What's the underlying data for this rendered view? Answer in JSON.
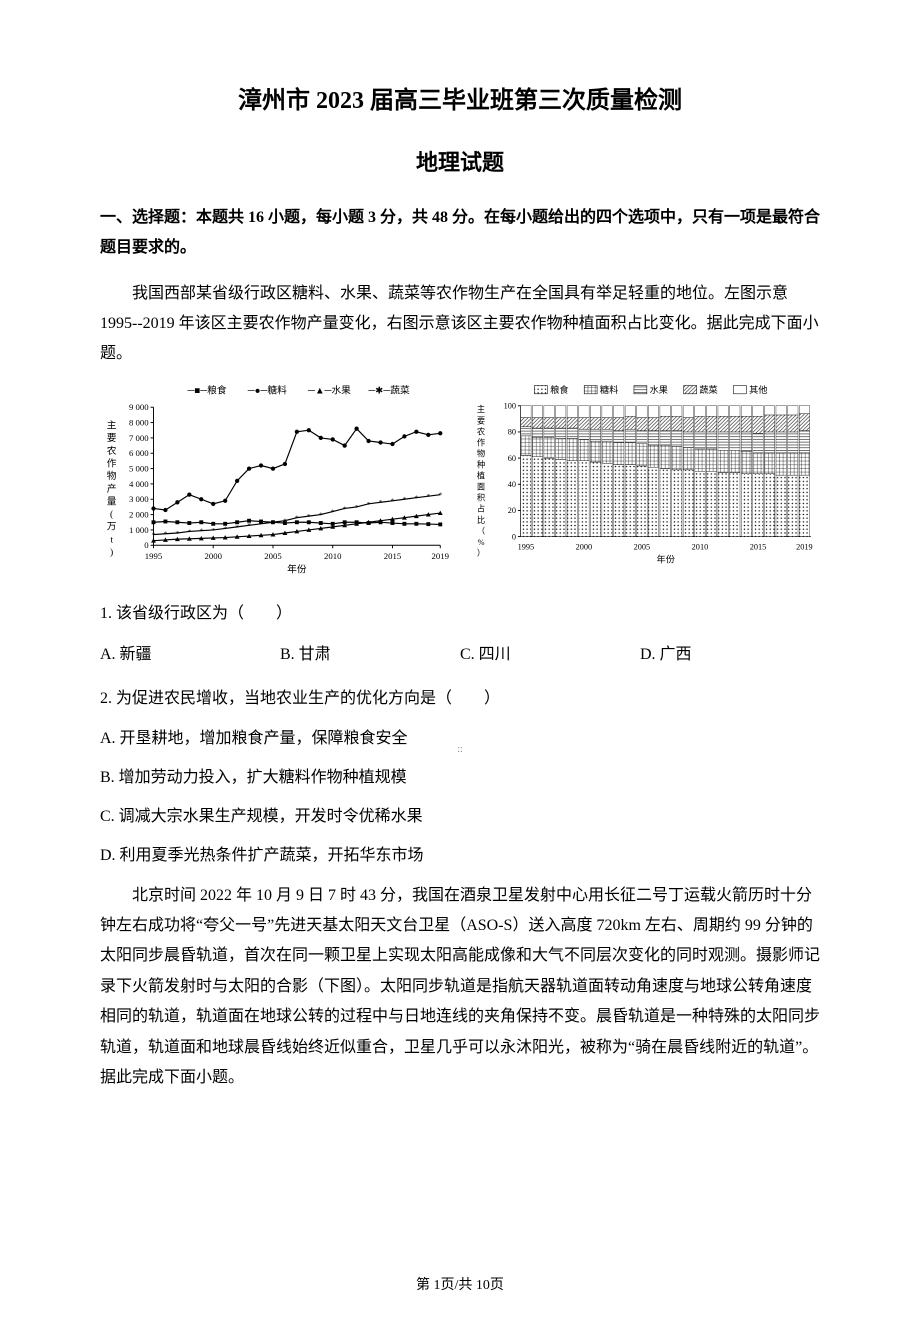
{
  "header": {
    "title_main": "漳州市 2023 届高三毕业班第三次质量检测",
    "title_sub": "地理试题"
  },
  "section1": {
    "header": "一、选择题：本题共 16 小题，每小题 3 分，共 48 分。在每小题给出的四个选项中，只有一项是最符合题目要求的。"
  },
  "passage1": {
    "text": "我国西部某省级行政区糖料、水果、蔬菜等农作物生产在全国具有举足轻重的地位。左图示意1995--2019 年该区主要农作物产量变化，右图示意该区主要农作物种植面积占比变化。据此完成下面小题。"
  },
  "chart_left": {
    "type": "line",
    "legend": [
      "粮食",
      "糖料",
      "水果",
      "蔬菜"
    ],
    "legend_markers": [
      "■",
      "●",
      "▲",
      "✱"
    ],
    "ylabel": "主要农作物产量(万t)",
    "xlabel": "年份",
    "x_values": [
      1995,
      2000,
      2005,
      2010,
      2015,
      2019
    ],
    "y_ticks": [
      0,
      1000,
      2000,
      3000,
      4000,
      5000,
      6000,
      7000,
      8000,
      9000
    ],
    "ylim": [
      0,
      9000
    ],
    "series": {
      "grain": [
        1500,
        1550,
        1500,
        1450,
        1500,
        1400,
        1400,
        1500,
        1600,
        1550,
        1500,
        1450,
        1500,
        1500,
        1450,
        1400,
        1500,
        1500,
        1450,
        1500,
        1450,
        1400,
        1400,
        1380,
        1360
      ],
      "sugar": [
        2400,
        2300,
        2800,
        3300,
        3000,
        2700,
        2900,
        4200,
        5000,
        5200,
        5000,
        5300,
        7400,
        7500,
        7000,
        6900,
        6500,
        7600,
        6800,
        6700,
        6600,
        7100,
        7400,
        7200,
        7300
      ],
      "fruit": [
        300,
        350,
        400,
        420,
        450,
        480,
        500,
        550,
        600,
        650,
        700,
        800,
        900,
        1000,
        1100,
        1200,
        1300,
        1400,
        1500,
        1600,
        1700,
        1800,
        1900,
        2000,
        2100
      ],
      "veget": [
        700,
        750,
        800,
        900,
        950,
        1000,
        1100,
        1200,
        1300,
        1400,
        1500,
        1600,
        1800,
        1900,
        2000,
        2200,
        2400,
        2500,
        2700,
        2800,
        2900,
        3000,
        3100,
        3200,
        3300
      ]
    },
    "colors": {
      "line": "#000000",
      "background": "#ffffff",
      "grid": "#000000"
    },
    "line_width": 1.2
  },
  "chart_right": {
    "type": "stacked-bar",
    "legend": [
      "粮食",
      "糖料",
      "水果",
      "蔬菜",
      "其他"
    ],
    "legend_patterns": [
      "dots",
      "grid",
      "horiz",
      "diag",
      "blank"
    ],
    "ylabel": "主要农作物种植面积占比（%）",
    "xlabel": "年份",
    "x_values": [
      1995,
      2000,
      2005,
      2010,
      2015,
      2019
    ],
    "y_ticks": [
      0,
      20,
      40,
      60,
      80,
      100
    ],
    "ylim": [
      0,
      100
    ],
    "stacks": {
      "years": [
        1995,
        1996,
        1997,
        1998,
        1999,
        2000,
        2001,
        2002,
        2003,
        2004,
        2005,
        2006,
        2007,
        2008,
        2009,
        2010,
        2011,
        2012,
        2013,
        2014,
        2015,
        2016,
        2017,
        2018,
        2019
      ],
      "grain": [
        62,
        61,
        60,
        59,
        58,
        58,
        57,
        56,
        55,
        55,
        54,
        53,
        52,
        51,
        51,
        50,
        50,
        49,
        49,
        48,
        48,
        48,
        47,
        47,
        47
      ],
      "sugar": [
        15,
        15,
        16,
        16,
        17,
        16,
        16,
        17,
        17,
        17,
        17,
        17,
        18,
        18,
        17,
        17,
        17,
        17,
        17,
        17,
        16,
        16,
        17,
        17,
        17
      ],
      "fruit": [
        7,
        7,
        7,
        8,
        8,
        8,
        9,
        9,
        9,
        10,
        10,
        11,
        11,
        12,
        12,
        13,
        13,
        14,
        14,
        15,
        15,
        16,
        16,
        16,
        17
      ],
      "veget": [
        7,
        8,
        8,
        8,
        8,
        9,
        9,
        9,
        10,
        10,
        10,
        10,
        11,
        11,
        11,
        12,
        12,
        12,
        12,
        12,
        13,
        13,
        13,
        13,
        13
      ],
      "other": [
        9,
        9,
        9,
        9,
        9,
        9,
        9,
        9,
        9,
        8,
        9,
        9,
        8,
        8,
        9,
        8,
        8,
        8,
        8,
        8,
        8,
        7,
        7,
        7,
        6
      ]
    },
    "colors": {
      "border": "#000000",
      "background": "#ffffff"
    }
  },
  "q1": {
    "stem": "1. 该省级行政区为（　　）",
    "opts": {
      "A": "A. 新疆",
      "B": "B. 甘肃",
      "C": "C. 四川",
      "D": "D. 广西"
    }
  },
  "q2": {
    "stem": "2. 为促进农民增收，当地农业生产的优化方向是（　　）",
    "opts": {
      "A": "A. 开垦耕地，增加粮食产量，保障粮食安全",
      "B": "B. 增加劳动力投入，扩大糖料作物种植规模",
      "C": "C. 调减大宗水果生产规模，开发时令优稀水果",
      "D": "D. 利用夏季光热条件扩产蔬菜，开拓华东市场"
    }
  },
  "passage2": {
    "text": "北京时间 2022 年 10 月 9 日 7 时 43 分，我国在酒泉卫星发射中心用长征二号丁运载火箭历时十分钟左右成功将“夸父一号”先进天基太阳天文台卫星（ASO-S）送入高度 720km 左右、周期约 99 分钟的太阳同步晨昏轨道，首次在同一颗卫星上实现太阳高能成像和大气不同层次变化的同时观测。摄影师记录下火箭发射时与太阳的合影（下图）。太阳同步轨道是指航天器轨道面转动角速度与地球公转角速度相同的轨道，轨道面在地球公转的过程中与日地连线的夹角保持不变。晨昏轨道是一种特殊的太阳同步轨道，轨道面和地球晨昏线始终近似重合，卫星几乎可以永沐阳光，被称为“骑在晨昏线附近的轨道”。据此完成下面小题。"
  },
  "footer": {
    "text": "第 1页/共 10页"
  },
  "center_marker": "::"
}
